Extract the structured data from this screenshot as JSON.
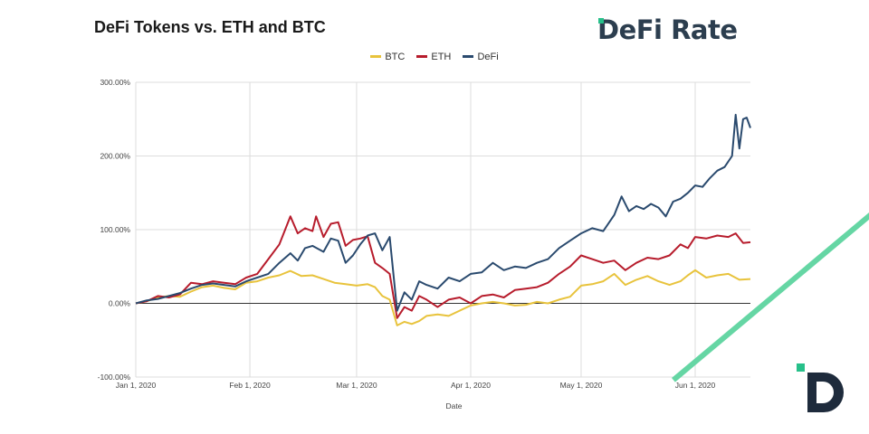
{
  "header": {
    "title": "DeFi Tokens vs. ETH and BTC",
    "brand": "DeFi Rate",
    "brand_logo": "defi-rate-logo"
  },
  "colors": {
    "BTC": "#e8c33c",
    "ETH": "#b71c2c",
    "DeFi": "#2a4a6e",
    "brand_green": "#27c08a",
    "stripe": "#65d6a4"
  },
  "chart_data": {
    "type": "line",
    "title": "DeFi Tokens vs. ETH and BTC",
    "xlabel": "Date",
    "ylabel": "",
    "ylim": [
      -100,
      300
    ],
    "yticks": [
      "300.00%",
      "200.00%",
      "100.00%",
      "0.00%",
      "-100.00%"
    ],
    "ytick_values": [
      300,
      200,
      100,
      0,
      -100
    ],
    "xticks": [
      "Jan 1, 2020",
      "Feb 1, 2020",
      "Mar 1, 2020",
      "Apr 1, 2020",
      "May 1, 2020",
      "Jun 1, 2020"
    ],
    "xtick_days": [
      0,
      31,
      60,
      91,
      121,
      152
    ],
    "x_range_days": [
      0,
      167
    ],
    "legend": [
      "BTC",
      "ETH",
      "DeFi"
    ],
    "legend_position": "top-center",
    "grid": true,
    "series": [
      {
        "name": "BTC",
        "points": [
          [
            0,
            0
          ],
          [
            3,
            3
          ],
          [
            6,
            8
          ],
          [
            9,
            10
          ],
          [
            12,
            9
          ],
          [
            15,
            16
          ],
          [
            18,
            22
          ],
          [
            21,
            24
          ],
          [
            24,
            21
          ],
          [
            27,
            19
          ],
          [
            30,
            28
          ],
          [
            33,
            30
          ],
          [
            36,
            35
          ],
          [
            39,
            38
          ],
          [
            42,
            44
          ],
          [
            45,
            37
          ],
          [
            48,
            38
          ],
          [
            51,
            33
          ],
          [
            54,
            28
          ],
          [
            57,
            26
          ],
          [
            60,
            24
          ],
          [
            63,
            26
          ],
          [
            65,
            22
          ],
          [
            67,
            10
          ],
          [
            69,
            5
          ],
          [
            71,
            -30
          ],
          [
            73,
            -25
          ],
          [
            75,
            -28
          ],
          [
            77,
            -24
          ],
          [
            79,
            -17
          ],
          [
            82,
            -15
          ],
          [
            85,
            -17
          ],
          [
            88,
            -10
          ],
          [
            91,
            -3
          ],
          [
            94,
            0
          ],
          [
            97,
            2
          ],
          [
            100,
            0
          ],
          [
            103,
            -3
          ],
          [
            106,
            -2
          ],
          [
            109,
            2
          ],
          [
            112,
            0
          ],
          [
            115,
            5
          ],
          [
            118,
            9
          ],
          [
            121,
            24
          ],
          [
            124,
            26
          ],
          [
            127,
            30
          ],
          [
            130,
            40
          ],
          [
            133,
            25
          ],
          [
            136,
            32
          ],
          [
            139,
            37
          ],
          [
            142,
            30
          ],
          [
            145,
            25
          ],
          [
            148,
            30
          ],
          [
            150,
            38
          ],
          [
            152,
            45
          ],
          [
            155,
            35
          ],
          [
            158,
            38
          ],
          [
            161,
            40
          ],
          [
            164,
            32
          ],
          [
            167,
            33
          ]
        ]
      },
      {
        "name": "ETH",
        "points": [
          [
            0,
            0
          ],
          [
            3,
            3
          ],
          [
            6,
            10
          ],
          [
            9,
            8
          ],
          [
            12,
            12
          ],
          [
            15,
            28
          ],
          [
            18,
            26
          ],
          [
            21,
            30
          ],
          [
            24,
            28
          ],
          [
            27,
            26
          ],
          [
            30,
            35
          ],
          [
            33,
            40
          ],
          [
            36,
            60
          ],
          [
            39,
            80
          ],
          [
            42,
            118
          ],
          [
            44,
            95
          ],
          [
            46,
            102
          ],
          [
            48,
            98
          ],
          [
            49,
            118
          ],
          [
            51,
            90
          ],
          [
            53,
            108
          ],
          [
            55,
            110
          ],
          [
            57,
            78
          ],
          [
            59,
            86
          ],
          [
            61,
            88
          ],
          [
            63,
            91
          ],
          [
            65,
            55
          ],
          [
            67,
            48
          ],
          [
            69,
            40
          ],
          [
            71,
            -20
          ],
          [
            73,
            -5
          ],
          [
            75,
            -10
          ],
          [
            77,
            10
          ],
          [
            79,
            5
          ],
          [
            82,
            -5
          ],
          [
            85,
            5
          ],
          [
            88,
            8
          ],
          [
            91,
            0
          ],
          [
            94,
            10
          ],
          [
            97,
            12
          ],
          [
            100,
            8
          ],
          [
            103,
            18
          ],
          [
            106,
            20
          ],
          [
            109,
            22
          ],
          [
            112,
            28
          ],
          [
            115,
            40
          ],
          [
            118,
            50
          ],
          [
            121,
            65
          ],
          [
            124,
            60
          ],
          [
            127,
            55
          ],
          [
            130,
            58
          ],
          [
            133,
            45
          ],
          [
            136,
            55
          ],
          [
            139,
            62
          ],
          [
            142,
            60
          ],
          [
            145,
            65
          ],
          [
            148,
            80
          ],
          [
            150,
            75
          ],
          [
            152,
            90
          ],
          [
            155,
            88
          ],
          [
            158,
            92
          ],
          [
            161,
            90
          ],
          [
            163,
            95
          ],
          [
            165,
            82
          ],
          [
            167,
            83
          ]
        ]
      },
      {
        "name": "DeFi",
        "points": [
          [
            0,
            0
          ],
          [
            3,
            4
          ],
          [
            6,
            6
          ],
          [
            9,
            10
          ],
          [
            12,
            14
          ],
          [
            15,
            20
          ],
          [
            18,
            25
          ],
          [
            21,
            27
          ],
          [
            24,
            25
          ],
          [
            27,
            23
          ],
          [
            30,
            30
          ],
          [
            33,
            35
          ],
          [
            36,
            40
          ],
          [
            39,
            55
          ],
          [
            42,
            68
          ],
          [
            44,
            58
          ],
          [
            46,
            75
          ],
          [
            48,
            78
          ],
          [
            51,
            70
          ],
          [
            53,
            88
          ],
          [
            55,
            85
          ],
          [
            57,
            55
          ],
          [
            59,
            65
          ],
          [
            61,
            80
          ],
          [
            63,
            92
          ],
          [
            65,
            95
          ],
          [
            67,
            72
          ],
          [
            69,
            90
          ],
          [
            71,
            -10
          ],
          [
            73,
            15
          ],
          [
            75,
            5
          ],
          [
            77,
            30
          ],
          [
            79,
            25
          ],
          [
            82,
            20
          ],
          [
            85,
            35
          ],
          [
            88,
            30
          ],
          [
            91,
            40
          ],
          [
            94,
            42
          ],
          [
            97,
            55
          ],
          [
            100,
            45
          ],
          [
            103,
            50
          ],
          [
            106,
            48
          ],
          [
            109,
            55
          ],
          [
            112,
            60
          ],
          [
            115,
            75
          ],
          [
            118,
            85
          ],
          [
            121,
            95
          ],
          [
            124,
            102
          ],
          [
            127,
            98
          ],
          [
            130,
            120
          ],
          [
            132,
            145
          ],
          [
            134,
            125
          ],
          [
            136,
            132
          ],
          [
            138,
            128
          ],
          [
            140,
            135
          ],
          [
            142,
            130
          ],
          [
            144,
            118
          ],
          [
            146,
            138
          ],
          [
            148,
            142
          ],
          [
            150,
            150
          ],
          [
            152,
            160
          ],
          [
            154,
            158
          ],
          [
            156,
            170
          ],
          [
            158,
            180
          ],
          [
            160,
            185
          ],
          [
            162,
            200
          ],
          [
            163,
            256
          ],
          [
            164,
            210
          ],
          [
            165,
            250
          ],
          [
            166,
            252
          ],
          [
            167,
            238
          ]
        ]
      }
    ]
  }
}
